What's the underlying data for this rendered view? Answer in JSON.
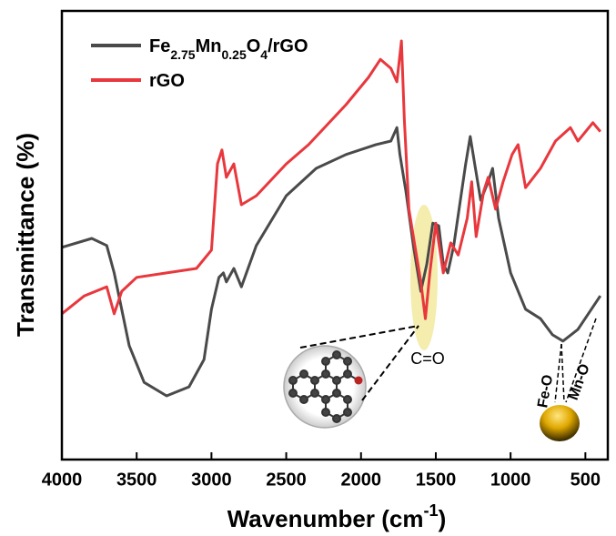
{
  "chart_data": {
    "type": "line",
    "xlabel": "Wavenumber (cm-1)",
    "ylabel": "Transmittance (%)",
    "xlim": [
      4000,
      350
    ],
    "ylim": [
      0,
      100
    ],
    "xticks": [
      4000,
      3500,
      3000,
      2500,
      2000,
      1500,
      1000,
      500
    ],
    "legend": "upper left",
    "annotations": [
      "C=O",
      "Fe-O",
      "Mn-O"
    ],
    "series": [
      {
        "name": "Fe2.75Mn0.25O4/rGO",
        "color": "#4a4a4a",
        "x": [
          4000,
          3800,
          3700,
          3650,
          3550,
          3450,
          3300,
          3150,
          3050,
          3000,
          2950,
          2920,
          2900,
          2850,
          2800,
          2700,
          2500,
          2300,
          2100,
          1900,
          1800,
          1760,
          1740,
          1700,
          1650,
          1600,
          1560,
          1520,
          1480,
          1450,
          1420,
          1380,
          1300,
          1270,
          1240,
          1200,
          1150,
          1120,
          1080,
          1000,
          900,
          800,
          720,
          650,
          550,
          480,
          400
        ],
        "values": [
          47.3,
          49.3,
          47.7,
          41.6,
          25.4,
          17.2,
          14.2,
          16.2,
          22.3,
          33.5,
          40.6,
          41.6,
          39.6,
          42.6,
          38.5,
          47.7,
          58.8,
          64.9,
          68.0,
          70.2,
          71.0,
          74.0,
          68.0,
          59.8,
          47.7,
          37.5,
          43.6,
          52.7,
          52.1,
          43.6,
          41.6,
          47.7,
          65.9,
          72.0,
          65.9,
          57.8,
          61.9,
          64.9,
          53.8,
          41.6,
          33.5,
          31.4,
          27.8,
          26.4,
          29.0,
          32.5,
          36.5
        ]
      },
      {
        "name": "rGO",
        "color": "#e8383d",
        "x": [
          4000,
          3850,
          3700,
          3650,
          3600,
          3500,
          3300,
          3100,
          3000,
          2960,
          2930,
          2900,
          2850,
          2800,
          2700,
          2500,
          2350,
          2300,
          2100,
          1950,
          1870,
          1800,
          1760,
          1730,
          1710,
          1680,
          1640,
          1600,
          1570,
          1540,
          1500,
          1450,
          1400,
          1350,
          1290,
          1260,
          1230,
          1180,
          1150,
          1100,
          1050,
          990,
          950,
          900,
          800,
          700,
          600,
          550,
          450,
          400
        ],
        "values": [
          32.5,
          36.5,
          38.5,
          32.5,
          37.5,
          40.6,
          41.6,
          42.6,
          46.7,
          65.9,
          69.0,
          62.9,
          65.9,
          56.8,
          58.8,
          65.9,
          70.2,
          72.0,
          79.1,
          85.2,
          89.2,
          87.2,
          84.2,
          93.3,
          75.7,
          55.8,
          47.7,
          39.6,
          31.4,
          41.6,
          52.7,
          41.6,
          48.3,
          45.6,
          53.8,
          61.9,
          49.7,
          59.8,
          62.9,
          55.8,
          61.9,
          68.0,
          70.2,
          60.6,
          64.9,
          71.0,
          74.0,
          71.0,
          75.1,
          73.1
        ]
      }
    ]
  }
}
